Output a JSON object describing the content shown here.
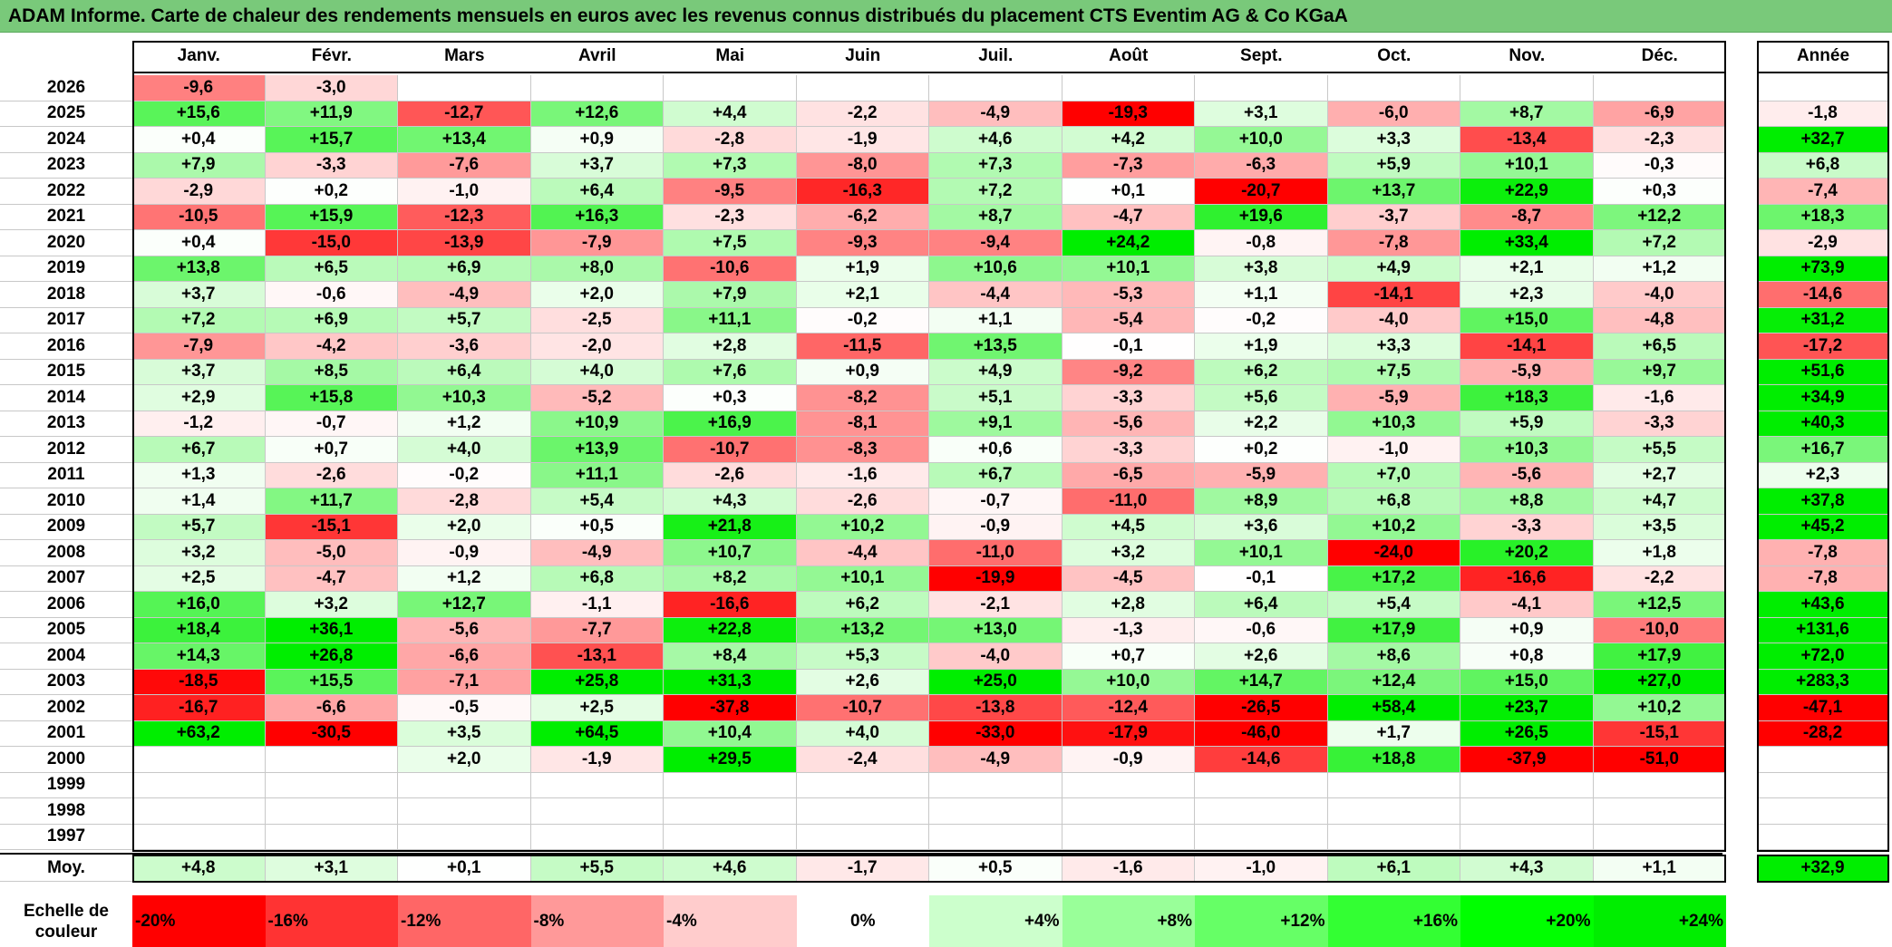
{
  "title": "ADAM Informe. Carte de chaleur des rendements mensuels en euros avec les revenus connus distribués du placement CTS Eventim AG & Co KGaA",
  "chart_data": {
    "type": "heatmap",
    "title": "ADAM Informe. Carte de chaleur des rendements mensuels en euros avec les revenus connus distribués du placement CTS Eventim AG & Co KGaA",
    "months": [
      "Janv.",
      "Févr.",
      "Mars",
      "Avril",
      "Mai",
      "Juin",
      "Juil.",
      "Août",
      "Sept.",
      "Oct.",
      "Nov.",
      "Déc."
    ],
    "year_header": "Année",
    "rows": [
      {
        "year": "2026",
        "months": [
          "-9,6",
          "-3,0",
          "",
          "",
          "",
          "",
          "",
          "",
          "",
          "",
          "",
          ""
        ],
        "annual": ""
      },
      {
        "year": "2025",
        "months": [
          "+15,6",
          "+11,9",
          "-12,7",
          "+12,6",
          "+4,4",
          "-2,2",
          "-4,9",
          "-19,3",
          "+3,1",
          "-6,0",
          "+8,7",
          "-6,9"
        ],
        "annual": "-1,8"
      },
      {
        "year": "2024",
        "months": [
          "+0,4",
          "+15,7",
          "+13,4",
          "+0,9",
          "-2,8",
          "-1,9",
          "+4,6",
          "+4,2",
          "+10,0",
          "+3,3",
          "-13,4",
          "-2,3"
        ],
        "annual": "+32,7"
      },
      {
        "year": "2023",
        "months": [
          "+7,9",
          "-3,3",
          "-7,6",
          "+3,7",
          "+7,3",
          "-8,0",
          "+7,3",
          "-7,3",
          "-6,3",
          "+5,9",
          "+10,1",
          "-0,3"
        ],
        "annual": "+6,8"
      },
      {
        "year": "2022",
        "months": [
          "-2,9",
          "+0,2",
          "-1,0",
          "+6,4",
          "-9,5",
          "-16,3",
          "+7,2",
          "+0,1",
          "-20,7",
          "+13,7",
          "+22,9",
          "+0,3"
        ],
        "annual": "-7,4"
      },
      {
        "year": "2021",
        "months": [
          "-10,5",
          "+15,9",
          "-12,3",
          "+16,3",
          "-2,3",
          "-6,2",
          "+8,7",
          "-4,7",
          "+19,6",
          "-3,7",
          "-8,7",
          "+12,2"
        ],
        "annual": "+18,3"
      },
      {
        "year": "2020",
        "months": [
          "+0,4",
          "-15,0",
          "-13,9",
          "-7,9",
          "+7,5",
          "-9,3",
          "-9,4",
          "+24,2",
          "-0,8",
          "-7,8",
          "+33,4",
          "+7,2"
        ],
        "annual": "-2,9"
      },
      {
        "year": "2019",
        "months": [
          "+13,8",
          "+6,5",
          "+6,9",
          "+8,0",
          "-10,6",
          "+1,9",
          "+10,6",
          "+10,1",
          "+3,8",
          "+4,9",
          "+2,1",
          "+1,2"
        ],
        "annual": "+73,9"
      },
      {
        "year": "2018",
        "months": [
          "+3,7",
          "-0,6",
          "-4,9",
          "+2,0",
          "+7,9",
          "+2,1",
          "-4,4",
          "-5,3",
          "+1,1",
          "-14,1",
          "+2,3",
          "-4,0"
        ],
        "annual": "-14,6"
      },
      {
        "year": "2017",
        "months": [
          "+7,2",
          "+6,9",
          "+5,7",
          "-2,5",
          "+11,1",
          "-0,2",
          "+1,1",
          "-5,4",
          "-0,2",
          "-4,0",
          "+15,0",
          "-4,8"
        ],
        "annual": "+31,2"
      },
      {
        "year": "2016",
        "months": [
          "-7,9",
          "-4,2",
          "-3,6",
          "-2,0",
          "+2,8",
          "-11,5",
          "+13,5",
          "-0,1",
          "+1,9",
          "+3,3",
          "-14,1",
          "+6,5"
        ],
        "annual": "-17,2"
      },
      {
        "year": "2015",
        "months": [
          "+3,7",
          "+8,5",
          "+6,4",
          "+4,0",
          "+7,6",
          "+0,9",
          "+4,9",
          "-9,2",
          "+6,2",
          "+7,5",
          "-5,9",
          "+9,7"
        ],
        "annual": "+51,6"
      },
      {
        "year": "2014",
        "months": [
          "+2,9",
          "+15,8",
          "+10,3",
          "-5,2",
          "+0,3",
          "-8,2",
          "+5,1",
          "-3,3",
          "+5,6",
          "-5,9",
          "+18,3",
          "-1,6"
        ],
        "annual": "+34,9"
      },
      {
        "year": "2013",
        "months": [
          "-1,2",
          "-0,7",
          "+1,2",
          "+10,9",
          "+16,9",
          "-8,1",
          "+9,1",
          "-5,6",
          "+2,2",
          "+10,3",
          "+5,9",
          "-3,3"
        ],
        "annual": "+40,3"
      },
      {
        "year": "2012",
        "months": [
          "+6,7",
          "+0,7",
          "+4,0",
          "+13,9",
          "-10,7",
          "-8,3",
          "+0,6",
          "-3,3",
          "+0,2",
          "-1,0",
          "+10,3",
          "+5,5"
        ],
        "annual": "+16,7"
      },
      {
        "year": "2011",
        "months": [
          "+1,3",
          "-2,6",
          "-0,2",
          "+11,1",
          "-2,6",
          "-1,6",
          "+6,7",
          "-6,5",
          "-5,9",
          "+7,0",
          "-5,6",
          "+2,7"
        ],
        "annual": "+2,3"
      },
      {
        "year": "2010",
        "months": [
          "+1,4",
          "+11,7",
          "-2,8",
          "+5,4",
          "+4,3",
          "-2,6",
          "-0,7",
          "-11,0",
          "+8,9",
          "+6,8",
          "+8,8",
          "+4,7"
        ],
        "annual": "+37,8"
      },
      {
        "year": "2009",
        "months": [
          "+5,7",
          "-15,1",
          "+2,0",
          "+0,5",
          "+21,8",
          "+10,2",
          "-0,9",
          "+4,5",
          "+3,6",
          "+10,2",
          "-3,3",
          "+3,5"
        ],
        "annual": "+45,2"
      },
      {
        "year": "2008",
        "months": [
          "+3,2",
          "-5,0",
          "-0,9",
          "-4,9",
          "+10,7",
          "-4,4",
          "-11,0",
          "+3,2",
          "+10,1",
          "-24,0",
          "+20,2",
          "+1,8"
        ],
        "annual": "-7,8"
      },
      {
        "year": "2007",
        "months": [
          "+2,5",
          "-4,7",
          "+1,2",
          "+6,8",
          "+8,2",
          "+10,1",
          "-19,9",
          "-4,5",
          "-0,1",
          "+17,2",
          "-16,6",
          "-2,2"
        ],
        "annual": "-7,8"
      },
      {
        "year": "2006",
        "months": [
          "+16,0",
          "+3,2",
          "+12,7",
          "-1,1",
          "-16,6",
          "+6,2",
          "-2,1",
          "+2,8",
          "+6,4",
          "+5,4",
          "-4,1",
          "+12,5"
        ],
        "annual": "+43,6"
      },
      {
        "year": "2005",
        "months": [
          "+18,4",
          "+36,1",
          "-5,6",
          "-7,7",
          "+22,8",
          "+13,2",
          "+13,0",
          "-1,3",
          "-0,6",
          "+17,9",
          "+0,9",
          "-10,0"
        ],
        "annual": "+131,6"
      },
      {
        "year": "2004",
        "months": [
          "+14,3",
          "+26,8",
          "-6,6",
          "-13,1",
          "+8,4",
          "+5,3",
          "-4,0",
          "+0,7",
          "+2,6",
          "+8,6",
          "+0,8",
          "+17,9"
        ],
        "annual": "+72,0"
      },
      {
        "year": "2003",
        "months": [
          "-18,5",
          "+15,5",
          "-7,1",
          "+25,8",
          "+31,3",
          "+2,6",
          "+25,0",
          "+10,0",
          "+14,7",
          "+12,4",
          "+15,0",
          "+27,0"
        ],
        "annual": "+283,3"
      },
      {
        "year": "2002",
        "months": [
          "-16,7",
          "-6,6",
          "-0,5",
          "+2,5",
          "-37,8",
          "-10,7",
          "-13,8",
          "-12,4",
          "-26,5",
          "+58,4",
          "+23,7",
          "+10,2"
        ],
        "annual": "-47,1"
      },
      {
        "year": "2001",
        "months": [
          "+63,2",
          "-30,5",
          "+3,5",
          "+64,5",
          "+10,4",
          "+4,0",
          "-33,0",
          "-17,9",
          "-46,0",
          "+1,7",
          "+26,5",
          "-15,1"
        ],
        "annual": "-28,2"
      },
      {
        "year": "2000",
        "months": [
          "",
          "",
          "+2,0",
          "-1,9",
          "+29,5",
          "-2,4",
          "-4,9",
          "-0,9",
          "-14,6",
          "+18,8",
          "-37,9",
          "-51,0"
        ],
        "annual": ""
      },
      {
        "year": "1999",
        "months": [
          "",
          "",
          "",
          "",
          "",
          "",
          "",
          "",
          "",
          "",
          "",
          ""
        ],
        "annual": ""
      },
      {
        "year": "1998",
        "months": [
          "",
          "",
          "",
          "",
          "",
          "",
          "",
          "",
          "",
          "",
          "",
          ""
        ],
        "annual": ""
      },
      {
        "year": "1997",
        "months": [
          "",
          "",
          "",
          "",
          "",
          "",
          "",
          "",
          "",
          "",
          "",
          ""
        ],
        "annual": ""
      }
    ],
    "average": {
      "label": "Moy.",
      "months": [
        "+4,8",
        "+3,1",
        "+0,1",
        "+5,5",
        "+4,6",
        "-1,7",
        "+0,5",
        "-1,6",
        "-1,0",
        "+6,1",
        "+4,3",
        "+1,1"
      ],
      "annual": "+32,9"
    },
    "color_scale": {
      "label_line1": "Echelle de",
      "label_line2": "couleur",
      "stops": [
        {
          "label": "-20%",
          "value": -20,
          "color": "#ff0000"
        },
        {
          "label": "-16%",
          "value": -16,
          "color": "#ff3333"
        },
        {
          "label": "-12%",
          "value": -12,
          "color": "#ff6666"
        },
        {
          "label": "-8%",
          "value": -8,
          "color": "#ff9999"
        },
        {
          "label": "-4%",
          "value": -4,
          "color": "#ffcccc"
        },
        {
          "label": "0%",
          "value": 0,
          "color": "#ffffff"
        },
        {
          "label": "+4%",
          "value": 4,
          "color": "#ccffcc"
        },
        {
          "label": "+8%",
          "value": 8,
          "color": "#99ff99"
        },
        {
          "label": "+12%",
          "value": 12,
          "color": "#66ff66"
        },
        {
          "label": "+16%",
          "value": 16,
          "color": "#33ff33"
        },
        {
          "label": "+20%",
          "value": 20,
          "color": "#00ff00"
        },
        {
          "label": "+24%",
          "value": 24,
          "color": "#00ee00"
        }
      ]
    }
  }
}
